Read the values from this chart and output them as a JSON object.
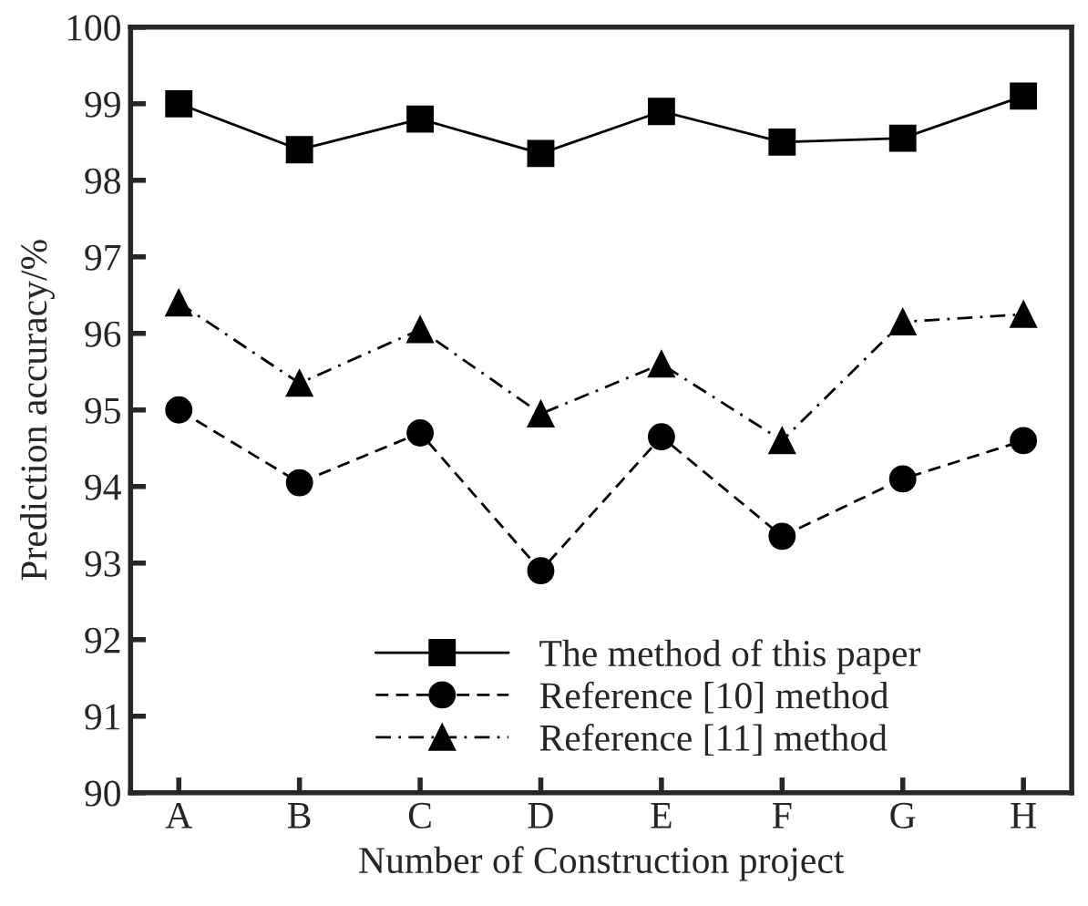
{
  "chart_data": {
    "type": "line",
    "xlabel": "Number of Construction project",
    "ylabel": "Prediction accuracy/%",
    "categories": [
      "A",
      "B",
      "C",
      "D",
      "E",
      "F",
      "G",
      "H"
    ],
    "series": [
      {
        "name": "The method of this paper",
        "color": "#000000",
        "marker": "square",
        "line_style": "solid",
        "values": [
          99.0,
          98.4,
          98.8,
          98.35,
          98.9,
          98.5,
          98.55,
          99.1
        ]
      },
      {
        "name": "Reference [10] method",
        "color": "#000000",
        "marker": "circle",
        "line_style": "dashed",
        "values": [
          95.0,
          94.05,
          94.7,
          92.9,
          94.65,
          93.35,
          94.1,
          94.6
        ]
      },
      {
        "name": "Reference [11] method",
        "color": "#000000",
        "marker": "triangle",
        "line_style": "dashdot",
        "values": [
          96.4,
          95.35,
          96.05,
          94.95,
          95.6,
          94.6,
          96.15,
          96.25
        ]
      }
    ],
    "ylim": [
      90,
      100
    ],
    "yticks": [
      90,
      91,
      92,
      93,
      94,
      95,
      96,
      97,
      98,
      99,
      100
    ],
    "grid": false,
    "legend": "bottom"
  }
}
